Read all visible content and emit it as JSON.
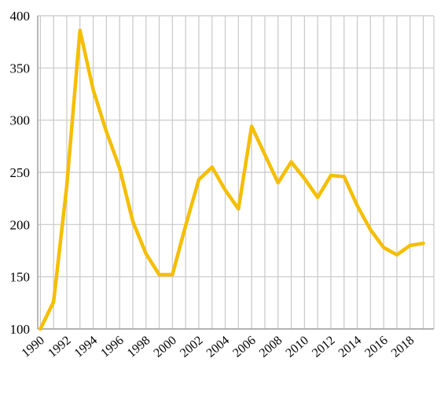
{
  "chart_data": {
    "type": "line",
    "title": "",
    "xlabel": "",
    "ylabel": "",
    "x": [
      1990,
      1991,
      1992,
      1993,
      1994,
      1995,
      1996,
      1997,
      1998,
      1999,
      2000,
      2001,
      2002,
      2003,
      2004,
      2005,
      2006,
      2007,
      2008,
      2009,
      2010,
      2011,
      2012,
      2013,
      2014,
      2015,
      2016,
      2017,
      2018,
      2019
    ],
    "x_tick_labels": [
      "1990",
      "1992",
      "1994",
      "1996",
      "1998",
      "2000",
      "2002",
      "2004",
      "2006",
      "2008",
      "2010",
      "2012",
      "2014",
      "2016",
      "2018"
    ],
    "y_tick_labels": [
      "100",
      "150",
      "200",
      "250",
      "300",
      "350",
      "400"
    ],
    "ylim": [
      100,
      400
    ],
    "grid": "vertical and horizontal",
    "legend": "none",
    "series": [
      {
        "color": "#F5BE00",
        "values": [
          100,
          126,
          237,
          386,
          329,
          289,
          254,
          203,
          172,
          152,
          152,
          199,
          243,
          255,
          233,
          215,
          294,
          267,
          240,
          260,
          244,
          226,
          247,
          246,
          218,
          195,
          178,
          171,
          180,
          182
        ]
      }
    ]
  }
}
